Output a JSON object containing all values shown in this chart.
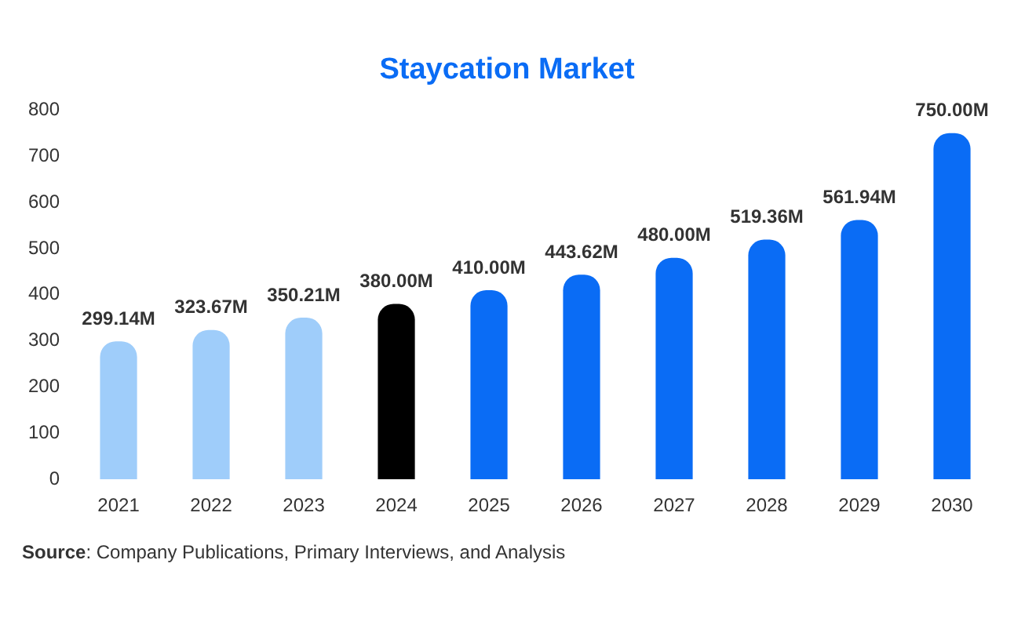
{
  "chart_data": {
    "type": "bar",
    "title": "Staycation Market",
    "categories": [
      "2021",
      "2022",
      "2023",
      "2024",
      "2025",
      "2026",
      "2027",
      "2028",
      "2029",
      "2030"
    ],
    "values": [
      299.14,
      323.67,
      350.21,
      380.0,
      410.0,
      443.62,
      480.0,
      519.36,
      561.94,
      750.0
    ],
    "colors": [
      "#9fcdfa",
      "#9fcdfa",
      "#9fcdfa",
      "#000000",
      "#0a6cf5",
      "#0a6cf5",
      "#0a6cf5",
      "#0a6cf5",
      "#0a6cf5",
      "#0a6cf5"
    ],
    "value_labels": [
      "299.14M",
      "323.67M",
      "350.21M",
      "380.00M",
      "410.00M",
      "443.62M",
      "480.00M",
      "519.36M",
      "561.94M",
      "750.00M"
    ],
    "ylim": [
      0,
      800
    ],
    "yticks": [
      0,
      100,
      200,
      300,
      400,
      500,
      600,
      700,
      800
    ],
    "grid": false,
    "legend": false,
    "annotations": [
      "Source: Company Publications, Primary Interviews, and Analysis"
    ]
  }
}
